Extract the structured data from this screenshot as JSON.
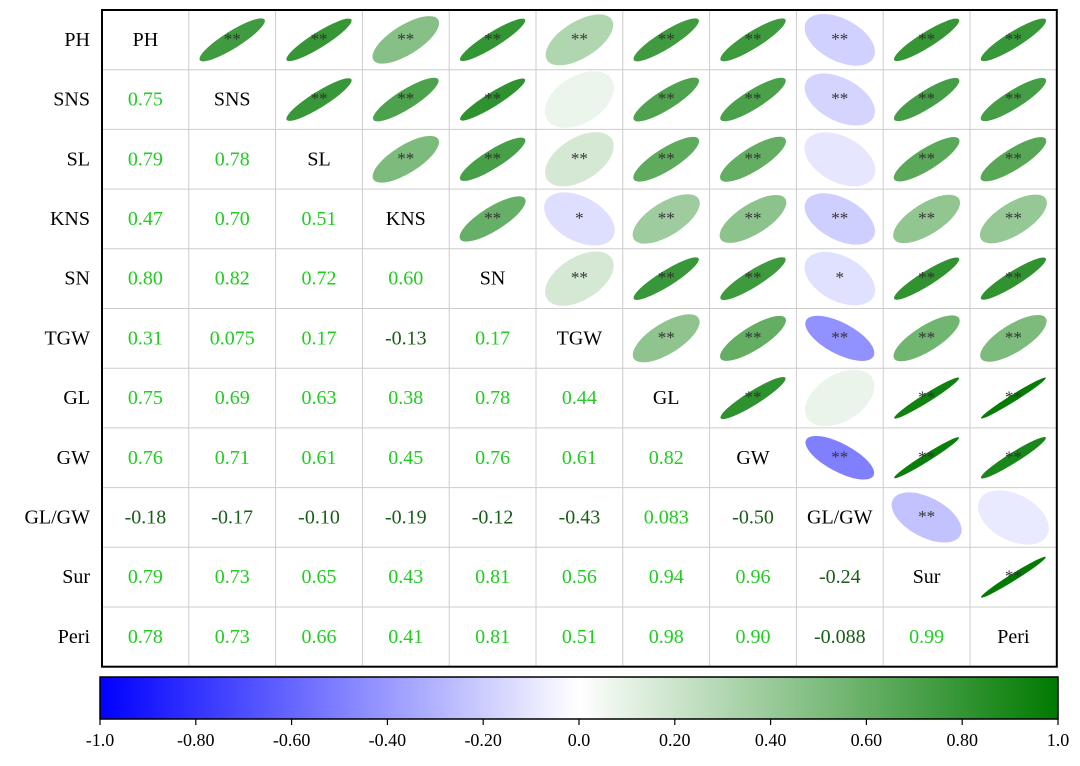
{
  "chart_data": {
    "type": "heatmap",
    "variables": [
      "PH",
      "SNS",
      "SL",
      "KNS",
      "SN",
      "TGW",
      "GL",
      "GW",
      "GL/GW",
      "Sur",
      "Peri"
    ],
    "matrix": [
      [
        1,
        0.75,
        0.79,
        0.47,
        0.8,
        0.31,
        0.75,
        0.76,
        -0.18,
        0.79,
        0.78
      ],
      [
        0.75,
        1,
        0.78,
        0.7,
        0.82,
        0.075,
        0.69,
        0.71,
        -0.17,
        0.73,
        0.73
      ],
      [
        0.79,
        0.78,
        1,
        0.51,
        0.72,
        0.17,
        0.63,
        0.61,
        -0.1,
        0.65,
        0.66
      ],
      [
        0.47,
        0.7,
        0.51,
        1,
        0.6,
        -0.13,
        0.38,
        0.45,
        -0.19,
        0.43,
        0.41
      ],
      [
        0.8,
        0.82,
        0.72,
        0.6,
        1,
        0.17,
        0.78,
        0.76,
        -0.12,
        0.81,
        0.81
      ],
      [
        0.31,
        0.075,
        0.17,
        -0.13,
        0.17,
        1,
        0.44,
        0.61,
        -0.43,
        0.56,
        0.51
      ],
      [
        0.75,
        0.69,
        0.63,
        0.38,
        0.78,
        0.44,
        1,
        0.82,
        0.083,
        0.94,
        0.98
      ],
      [
        0.76,
        0.71,
        0.61,
        0.45,
        0.76,
        0.61,
        0.82,
        1,
        -0.5,
        0.96,
        0.9
      ],
      [
        -0.18,
        -0.17,
        -0.1,
        -0.19,
        -0.12,
        -0.43,
        0.083,
        -0.5,
        1,
        -0.24,
        -0.088
      ],
      [
        0.79,
        0.73,
        0.65,
        0.43,
        0.81,
        0.56,
        0.94,
        0.96,
        -0.24,
        1,
        0.99
      ],
      [
        0.78,
        0.73,
        0.66,
        0.41,
        0.81,
        0.51,
        0.98,
        0.9,
        -0.088,
        0.99,
        1
      ]
    ],
    "lower_labels": [
      [],
      [
        "0.75"
      ],
      [
        "0.79",
        "0.78"
      ],
      [
        "0.47",
        "0.70",
        "0.51"
      ],
      [
        "0.80",
        "0.82",
        "0.72",
        "0.60"
      ],
      [
        "0.31",
        "0.075",
        "0.17",
        "-0.13",
        "0.17"
      ],
      [
        "0.75",
        "0.69",
        "0.63",
        "0.38",
        "0.78",
        "0.44"
      ],
      [
        "0.76",
        "0.71",
        "0.61",
        "0.45",
        "0.76",
        "0.61",
        "0.82"
      ],
      [
        "-0.18",
        "-0.17",
        "-0.10",
        "-0.19",
        "-0.12",
        "-0.43",
        "0.083",
        "-0.50"
      ],
      [
        "0.79",
        "0.73",
        "0.65",
        "0.43",
        "0.81",
        "0.56",
        "0.94",
        "0.96",
        "-0.24"
      ],
      [
        "0.78",
        "0.73",
        "0.66",
        "0.41",
        "0.81",
        "0.51",
        "0.98",
        "0.90",
        "-0.088",
        "0.99"
      ]
    ],
    "significance": [
      [
        "",
        "**",
        "**",
        "**",
        "**",
        "**",
        "**",
        "**",
        "**",
        "**",
        "**"
      ],
      [
        "",
        "",
        "**",
        "**",
        "**",
        "",
        "**",
        "**",
        "**",
        "**",
        "**"
      ],
      [
        "",
        "",
        "",
        "**",
        "**",
        "**",
        "**",
        "**",
        "",
        "**",
        "**"
      ],
      [
        "",
        "",
        "",
        "",
        "**",
        "*",
        "**",
        "**",
        "**",
        "**",
        "**"
      ],
      [
        "",
        "",
        "",
        "",
        "",
        "**",
        "**",
        "**",
        "*",
        "**",
        "**"
      ],
      [
        "",
        "",
        "",
        "",
        "",
        "",
        "**",
        "**",
        "**",
        "**",
        "**"
      ],
      [
        "",
        "",
        "",
        "",
        "",
        "",
        "",
        "**",
        "",
        "**",
        "**"
      ],
      [
        "",
        "",
        "",
        "",
        "",
        "",
        "",
        "",
        "**",
        "**",
        "**"
      ],
      [
        "",
        "",
        "",
        "",
        "",
        "",
        "",
        "",
        "",
        "**",
        ""
      ],
      [
        "",
        "",
        "",
        "",
        "",
        "",
        "",
        "",
        "",
        "",
        "**"
      ],
      [
        "",
        "",
        "",
        "",
        "",
        "",
        "",
        "",
        "",
        "",
        ""
      ]
    ],
    "colorbar": {
      "range": [
        -1.0,
        1.0
      ],
      "ticks": [
        "-1.0",
        "-0.80",
        "-0.60",
        "-0.40",
        "-0.20",
        "0.0",
        "0.20",
        "0.40",
        "0.60",
        "0.80",
        "1.0"
      ],
      "tick_values": [
        -1.0,
        -0.8,
        -0.6,
        -0.4,
        -0.2,
        0.0,
        0.2,
        0.4,
        0.6,
        0.8,
        1.0
      ]
    },
    "colors": {
      "negative": "#0000ff",
      "neutral": "#ffffff",
      "positive": "#007a00",
      "value_text": "#22cc22",
      "negative_text": "#1a5c1a",
      "label_text": "#000000",
      "star_text": "#333333",
      "grid": "#cccccc",
      "border": "#000000"
    },
    "legend_position": "bottom",
    "negative_text_rule": "values below zero use negative_text colour"
  }
}
